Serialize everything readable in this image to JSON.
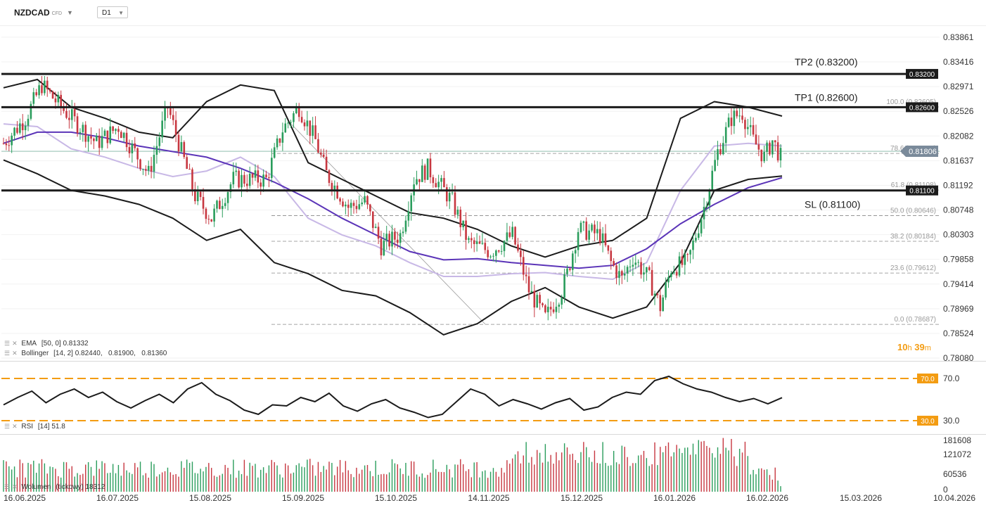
{
  "header": {
    "symbol": "NZDCAD",
    "symbol_suffix": "CFD",
    "timeframe": "D1"
  },
  "colors": {
    "bull": "#2a9d5c",
    "bear": "#c73740",
    "ema": "#5b34b8",
    "bollinger": "#1b1b1b",
    "bollinger_mid": "#c8b8e6",
    "level_line": "#1b1b1b",
    "rsi_level": "#f39c12",
    "price_tag": "#7a8a9a"
  },
  "indicators": {
    "ema_label": "EMA",
    "ema_params": "[50, 0]",
    "ema_value": "0.81332",
    "bb_label": "Bollinger",
    "bb_params": "[14, 2]",
    "bb_values": "0.82440,   0.81900,   0.81360",
    "rsi_label": "RSI",
    "rsi_params": "[14]",
    "rsi_value": "51.8",
    "vol_label": "Wolumen",
    "vol_params": "(tickowy)",
    "vol_value": "18312"
  },
  "countdown": {
    "hours": "10",
    "h_unit": "h",
    "minutes": "39",
    "m_unit": "m"
  },
  "chart_data": {
    "type": "candlestick",
    "price_axis_ticks": [
      0.83861,
      0.83416,
      0.82971,
      0.82526,
      0.82082,
      0.81637,
      0.81192,
      0.80748,
      0.80303,
      0.79858,
      0.79414,
      0.78969,
      0.78524,
      0.7808
    ],
    "price_axis_labels": [
      "0.83861",
      "0.83416",
      "0.82971",
      "0.82526",
      "0.82082",
      "0.81637",
      "0.81192",
      "0.80748",
      "0.80303",
      "0.79858",
      "0.79414",
      "0.78969",
      "0.78524",
      "0.78080"
    ],
    "ylim": [
      0.7808,
      0.8386
    ],
    "date_labels": [
      "16.06.2025",
      "16.07.2025",
      "15.08.2025",
      "15.09.2025",
      "15.10.2025",
      "14.11.2025",
      "15.12.2025",
      "16.01.2026",
      "16.02.2026",
      "15.03.2026",
      "10.04.2026"
    ],
    "current_price": {
      "value": 0.81806,
      "label": "0.81806"
    },
    "levels": [
      {
        "name": "TP2",
        "label": "TP2 (0.83200)",
        "value": 0.832,
        "tag": "0.83200"
      },
      {
        "name": "TP1",
        "label": "TP1 (0.82600)",
        "value": 0.826,
        "tag": "0.82600"
      },
      {
        "name": "SL",
        "label": "SL (0.81100)",
        "value": 0.811,
        "tag": "0.81100"
      }
    ],
    "fibonacci": [
      {
        "label": "100.0 (0.82605)",
        "value": 0.82605
      },
      {
        "label": "78.6 (0.81767)",
        "value": 0.81767
      },
      {
        "label": "61.8 (0.81108)",
        "value": 0.81108
      },
      {
        "label": "50.0 (0.80646)",
        "value": 0.80646
      },
      {
        "label": "38.2 (0.80184)",
        "value": 0.80184
      },
      {
        "label": "23.6 (0.79612)",
        "value": 0.79612
      },
      {
        "label": "0.0 (0.78687)",
        "value": 0.78687
      }
    ],
    "price_path": [
      [
        0,
        0.8195
      ],
      [
        8,
        0.824
      ],
      [
        14,
        0.83
      ],
      [
        22,
        0.8255
      ],
      [
        34,
        0.8195
      ],
      [
        42,
        0.8225
      ],
      [
        53,
        0.814
      ],
      [
        60,
        0.826
      ],
      [
        70,
        0.81
      ],
      [
        76,
        0.806
      ],
      [
        84,
        0.813
      ],
      [
        96,
        0.813
      ],
      [
        102,
        0.822
      ],
      [
        108,
        0.826
      ],
      [
        114,
        0.82
      ],
      [
        118,
        0.814
      ],
      [
        126,
        0.808
      ],
      [
        132,
        0.809
      ],
      [
        138,
        0.801
      ],
      [
        145,
        0.803
      ],
      [
        150,
        0.813
      ],
      [
        155,
        0.815
      ],
      [
        164,
        0.809
      ],
      [
        170,
        0.8015
      ],
      [
        178,
        0.8
      ],
      [
        186,
        0.803
      ],
      [
        192,
        0.793
      ],
      [
        198,
        0.788
      ],
      [
        204,
        0.793
      ],
      [
        206,
        0.796
      ],
      [
        210,
        0.804
      ],
      [
        218,
        0.803
      ],
      [
        222,
        0.798
      ],
      [
        226,
        0.795
      ],
      [
        230,
        0.799
      ],
      [
        236,
        0.795
      ],
      [
        240,
        0.79
      ],
      [
        244,
        0.797
      ],
      [
        250,
        0.798
      ],
      [
        256,
        0.808
      ],
      [
        261,
        0.818
      ],
      [
        266,
        0.824
      ],
      [
        270,
        0.825
      ],
      [
        274,
        0.82
      ],
      [
        278,
        0.817
      ],
      [
        281,
        0.82
      ],
      [
        284,
        0.817
      ]
    ],
    "ema_values": [
      0.8195,
      0.8215,
      0.8215,
      0.8205,
      0.819,
      0.818,
      0.817,
      0.815,
      0.8125,
      0.8095,
      0.806,
      0.803,
      0.8,
      0.7985,
      0.7987,
      0.798,
      0.7975,
      0.797,
      0.7975,
      0.8005,
      0.805,
      0.8085,
      0.8115,
      0.8133
    ],
    "bollinger_upper": [
      0.8295,
      0.831,
      0.826,
      0.824,
      0.8215,
      0.8205,
      0.827,
      0.83,
      0.829,
      0.816,
      0.813,
      0.81,
      0.807,
      0.806,
      0.804,
      0.801,
      0.799,
      0.801,
      0.802,
      0.806,
      0.824,
      0.827,
      0.826,
      0.8244
    ],
    "bollinger_lower": [
      0.8165,
      0.814,
      0.811,
      0.81,
      0.8085,
      0.806,
      0.802,
      0.804,
      0.798,
      0.796,
      0.793,
      0.792,
      0.789,
      0.785,
      0.787,
      0.791,
      0.7935,
      0.79,
      0.788,
      0.79,
      0.798,
      0.811,
      0.813,
      0.8136
    ],
    "bollinger_mid": [
      0.823,
      0.8225,
      0.8185,
      0.817,
      0.815,
      0.8135,
      0.8145,
      0.817,
      0.8135,
      0.806,
      0.803,
      0.801,
      0.798,
      0.7955,
      0.7955,
      0.796,
      0.7962,
      0.7955,
      0.795,
      0.798,
      0.811,
      0.819,
      0.8195,
      0.819
    ],
    "rsi": {
      "levels": [
        {
          "value": 70,
          "label": "70.0"
        },
        {
          "value": 30,
          "label": "30.0"
        }
      ],
      "axis_labels": [
        "70.0",
        "30.0"
      ],
      "ylim": [
        30,
        70
      ],
      "values": [
        45,
        52,
        58,
        47,
        55,
        60,
        52,
        57,
        48,
        42,
        49,
        55,
        47,
        60,
        66,
        55,
        49,
        40,
        36,
        45,
        44,
        52,
        48,
        56,
        44,
        39,
        46,
        50,
        42,
        38,
        33,
        36,
        48,
        60,
        55,
        44,
        50,
        46,
        41,
        47,
        51,
        40,
        43,
        52,
        57,
        55,
        68,
        72,
        65,
        60,
        57,
        52,
        48,
        51,
        46,
        51.8
      ]
    },
    "volume": {
      "axis_labels": [
        "181608",
        "121072",
        "60536",
        "0"
      ],
      "ylim": [
        0,
        181608
      ],
      "last": 18312
    }
  }
}
